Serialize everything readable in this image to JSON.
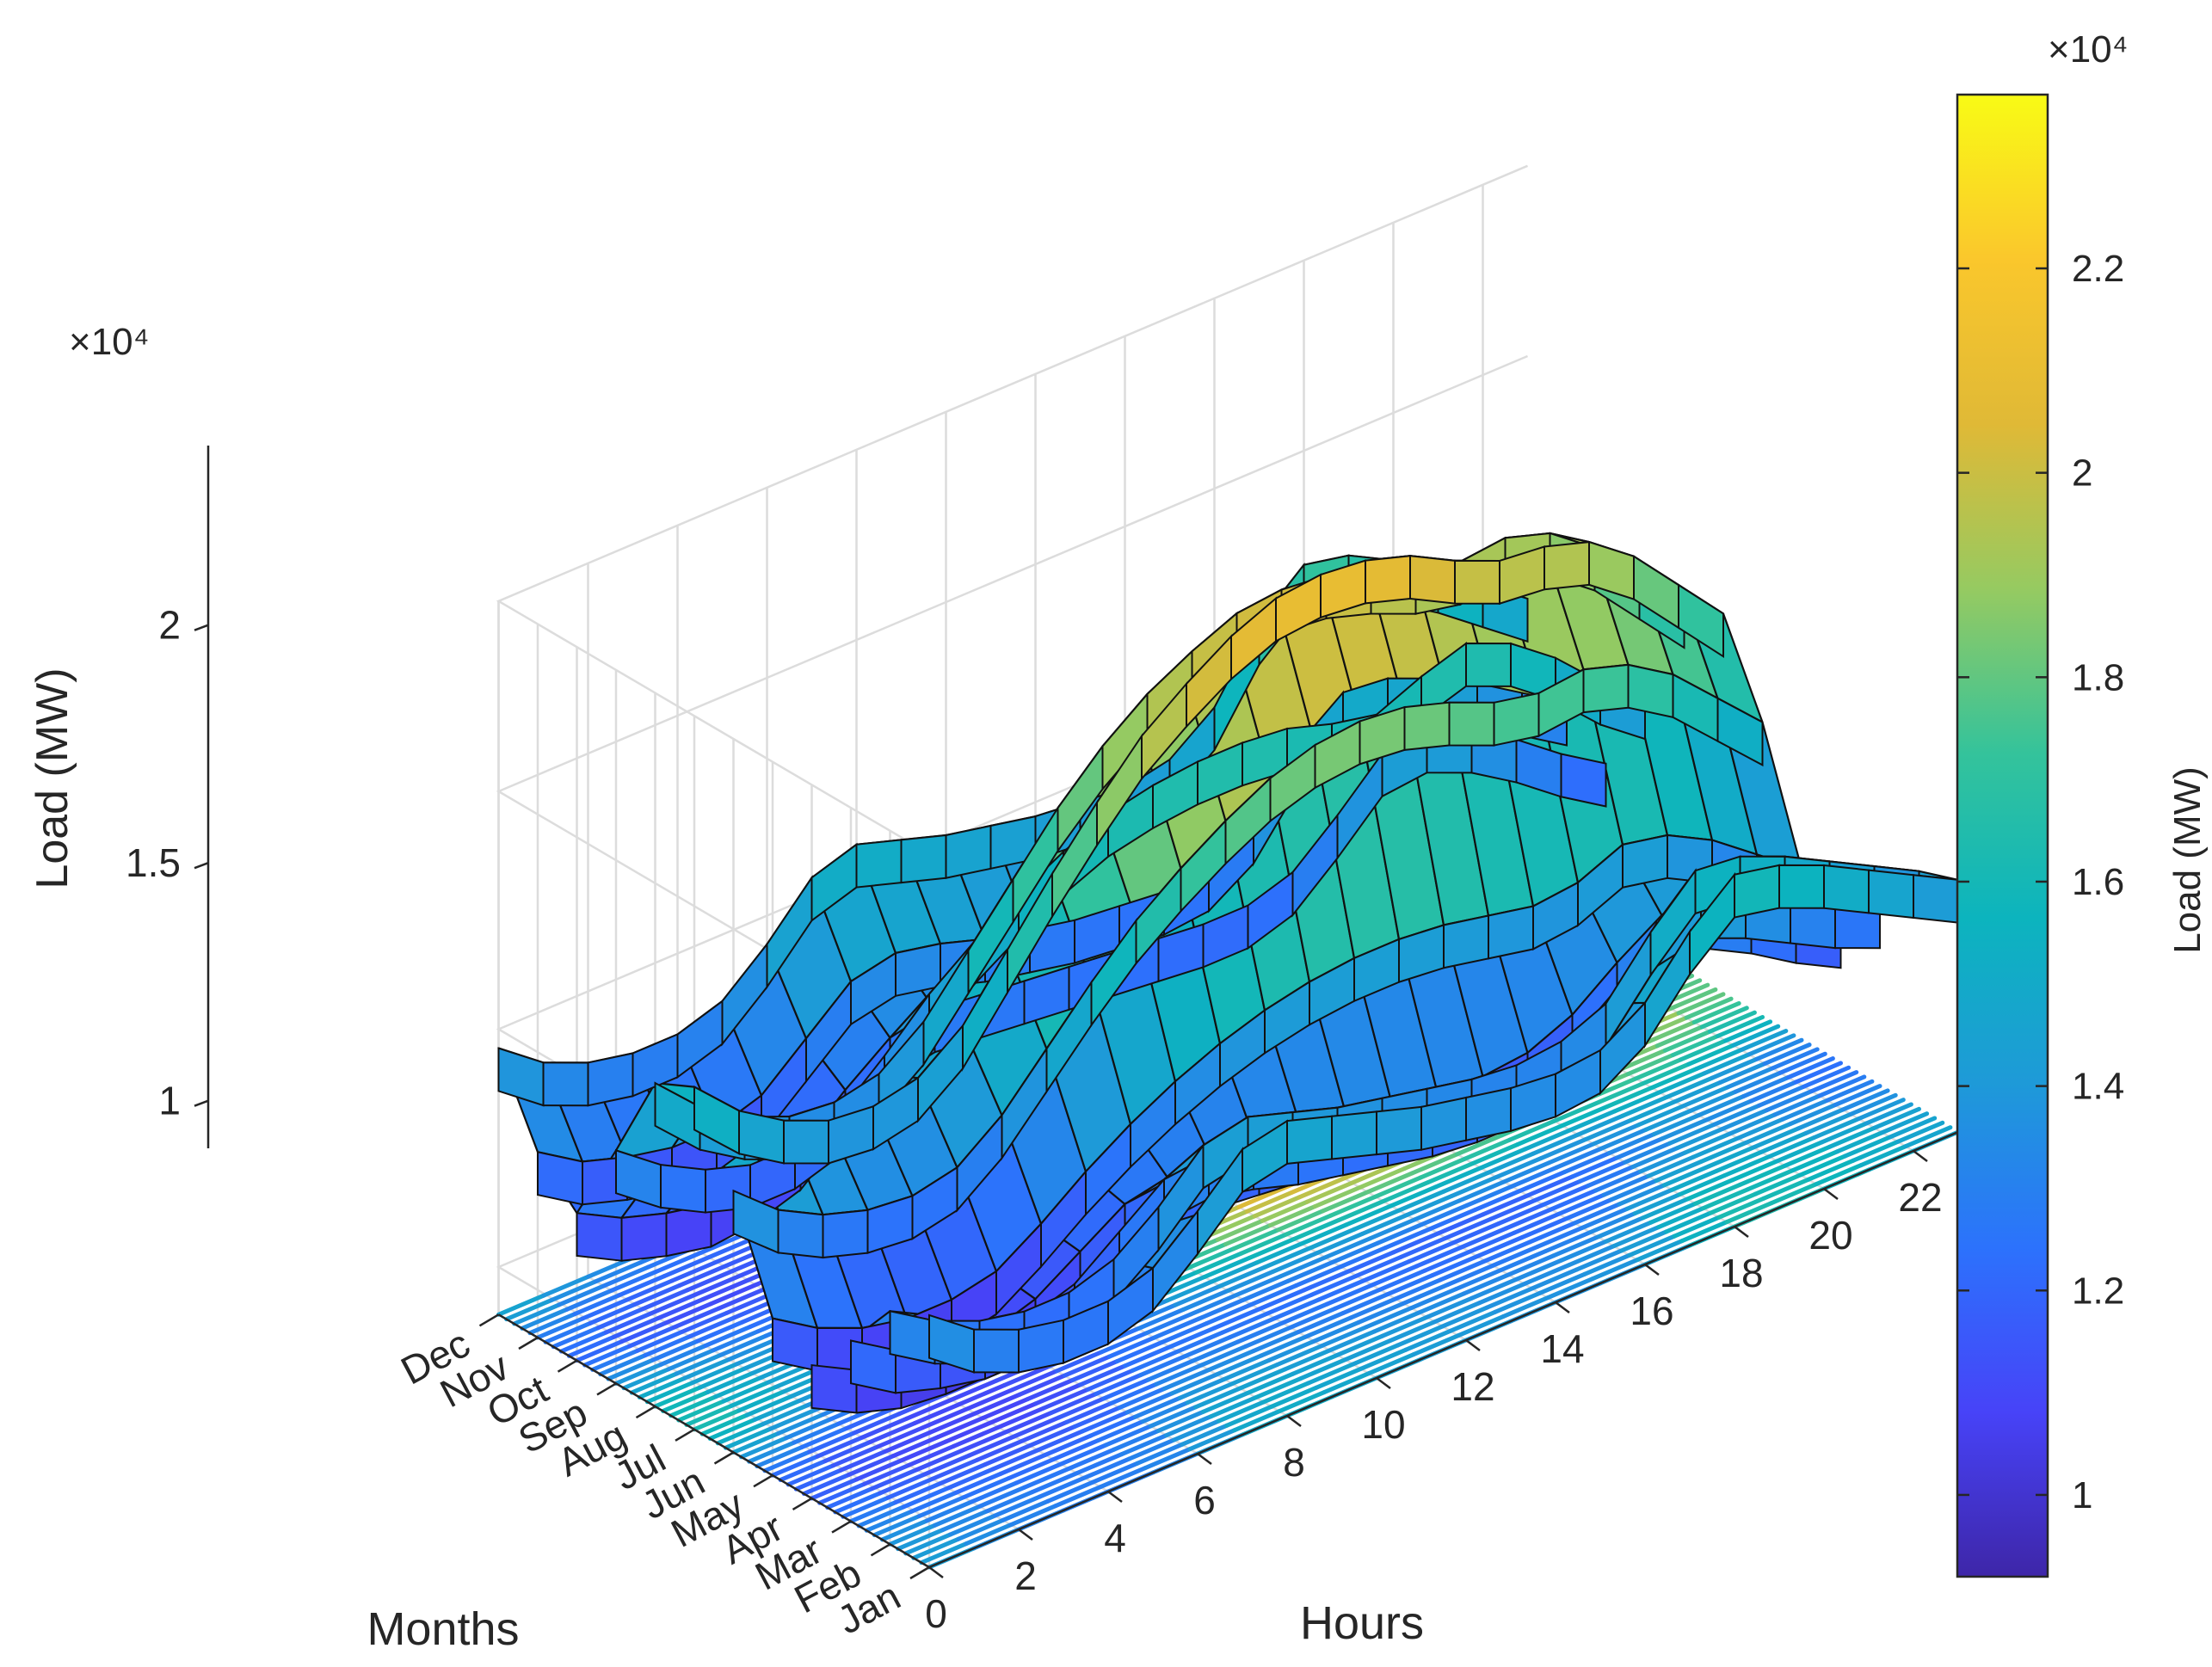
{
  "chart_data": {
    "type": "surface",
    "title": "",
    "xlabel": "Hours",
    "ylabel": "Months",
    "zlabel": "Load (MW)",
    "x_ticks": [
      "0",
      "2",
      "4",
      "6",
      "8",
      "10",
      "12",
      "14",
      "16",
      "18",
      "20",
      "22"
    ],
    "x_tick_values": [
      0,
      2,
      4,
      6,
      8,
      10,
      12,
      14,
      16,
      18,
      20,
      22
    ],
    "xlim": [
      0,
      23
    ],
    "y_ticks": [
      "Jan",
      "Feb",
      "Mar",
      "Apr",
      "May",
      "Jun",
      "Jul",
      "Aug",
      "Sep",
      "Oct",
      "Nov",
      "Dec"
    ],
    "z_ticks": [
      "1",
      "1.5",
      "2"
    ],
    "z_tick_values": [
      10000,
      15000,
      20000
    ],
    "z_exponent_label": "×10⁴",
    "zlim": [
      9000,
      24000
    ],
    "colormap": "parula",
    "colorbar": {
      "label": "Load (MW)",
      "ticks": [
        "1",
        "1.2",
        "1.4",
        "1.6",
        "1.8",
        "2",
        "2.2"
      ],
      "tick_values": [
        10000,
        12000,
        14000,
        16000,
        18000,
        20000,
        22000
      ],
      "range": [
        9200,
        23700
      ],
      "exponent_label": "×10⁴",
      "colors": [
        "#3e26a8",
        "#4743f8",
        "#2c72fc",
        "#1e9ad8",
        "#0cb4be",
        "#34c39b",
        "#96ca61",
        "#e0b936",
        "#fac72c",
        "#f9fb15"
      ]
    },
    "grid": true,
    "contour_projection": "bottom",
    "series": [
      {
        "month": "Jan",
        "values": [
          14300,
          13600,
          13200,
          13000,
          13000,
          13300,
          14100,
          15000,
          15200,
          14900,
          14600,
          14300,
          14100,
          13900,
          13800,
          13900,
          14500,
          15600,
          16400,
          16200,
          15800,
          15300,
          14800,
          14300
        ]
      },
      {
        "month": "Feb",
        "values": [
          13900,
          13300,
          12900,
          12700,
          12700,
          13000,
          13700,
          14600,
          14800,
          14500,
          14200,
          14000,
          13800,
          13600,
          13500,
          13600,
          14000,
          15100,
          16000,
          15900,
          15500,
          15000,
          14500,
          14000
        ]
      },
      {
        "month": "Mar",
        "values": [
          12800,
          12200,
          11900,
          11700,
          11700,
          12000,
          12700,
          13400,
          13500,
          13300,
          13000,
          12800,
          12600,
          12400,
          12300,
          12300,
          12600,
          13300,
          14400,
          14600,
          14200,
          13700,
          13200,
          12800
        ]
      },
      {
        "month": "Apr",
        "values": [
          11800,
          11300,
          11000,
          10900,
          10900,
          11200,
          11800,
          12400,
          12500,
          12400,
          12300,
          12200,
          12100,
          12000,
          11900,
          11900,
          12000,
          12400,
          13100,
          13700,
          13500,
          13000,
          12400,
          11900
        ]
      },
      {
        "month": "May",
        "values": [
          12300,
          11700,
          11300,
          11100,
          11100,
          11300,
          11900,
          12600,
          13200,
          13700,
          14100,
          14400,
          14600,
          14700,
          14700,
          14600,
          14400,
          14200,
          14300,
          14700,
          14500,
          14000,
          13300,
          12600
        ]
      },
      {
        "month": "Jun",
        "values": [
          14500,
          13700,
          13200,
          12900,
          12800,
          13000,
          13700,
          14700,
          15700,
          16600,
          17300,
          17900,
          18400,
          18700,
          18800,
          18700,
          18400,
          18000,
          17800,
          17900,
          17600,
          17000,
          16100,
          15200
        ]
      },
      {
        "month": "Jul",
        "values": [
          16200,
          15300,
          14700,
          14300,
          14200,
          14400,
          15100,
          16300,
          17500,
          18600,
          19600,
          20300,
          20900,
          21300,
          21400,
          21300,
          21000,
          20500,
          20100,
          20000,
          19700,
          19000,
          18000,
          17000
        ]
      },
      {
        "month": "Aug",
        "values": [
          15800,
          14900,
          14300,
          13900,
          13800,
          14000,
          14700,
          15800,
          16900,
          18000,
          18900,
          19600,
          20100,
          20500,
          20600,
          20500,
          20200,
          19800,
          19600,
          19700,
          19400,
          18700,
          17700,
          16700
        ]
      },
      {
        "month": "Sep",
        "values": [
          13900,
          13200,
          12700,
          12400,
          12400,
          12700,
          13500,
          14400,
          15100,
          15700,
          16200,
          16600,
          16800,
          16900,
          16900,
          16800,
          16500,
          16300,
          16700,
          17000,
          16600,
          15900,
          15000,
          14300
        ]
      },
      {
        "month": "Oct",
        "values": [
          12100,
          11600,
          11300,
          11100,
          11200,
          11500,
          12300,
          13000,
          13200,
          13100,
          13000,
          12900,
          12800,
          12700,
          12600,
          12600,
          12900,
          13700,
          14600,
          14700,
          14300,
          13700,
          13000,
          12400
        ]
      },
      {
        "month": "Nov",
        "values": [
          12900,
          12300,
          12000,
          11800,
          11800,
          12100,
          12900,
          13700,
          13900,
          13700,
          13400,
          13200,
          13000,
          12900,
          12800,
          12900,
          13500,
          14700,
          15400,
          15300,
          14900,
          14400,
          13800,
          13200
        ]
      },
      {
        "month": "Dec",
        "values": [
          14600,
          13900,
          13500,
          13300,
          13300,
          13600,
          14400,
          15400,
          15700,
          15400,
          15100,
          14900,
          14700,
          14600,
          14500,
          14700,
          15400,
          16800,
          17600,
          17400,
          16900,
          16300,
          15600,
          14900
        ]
      }
    ]
  }
}
